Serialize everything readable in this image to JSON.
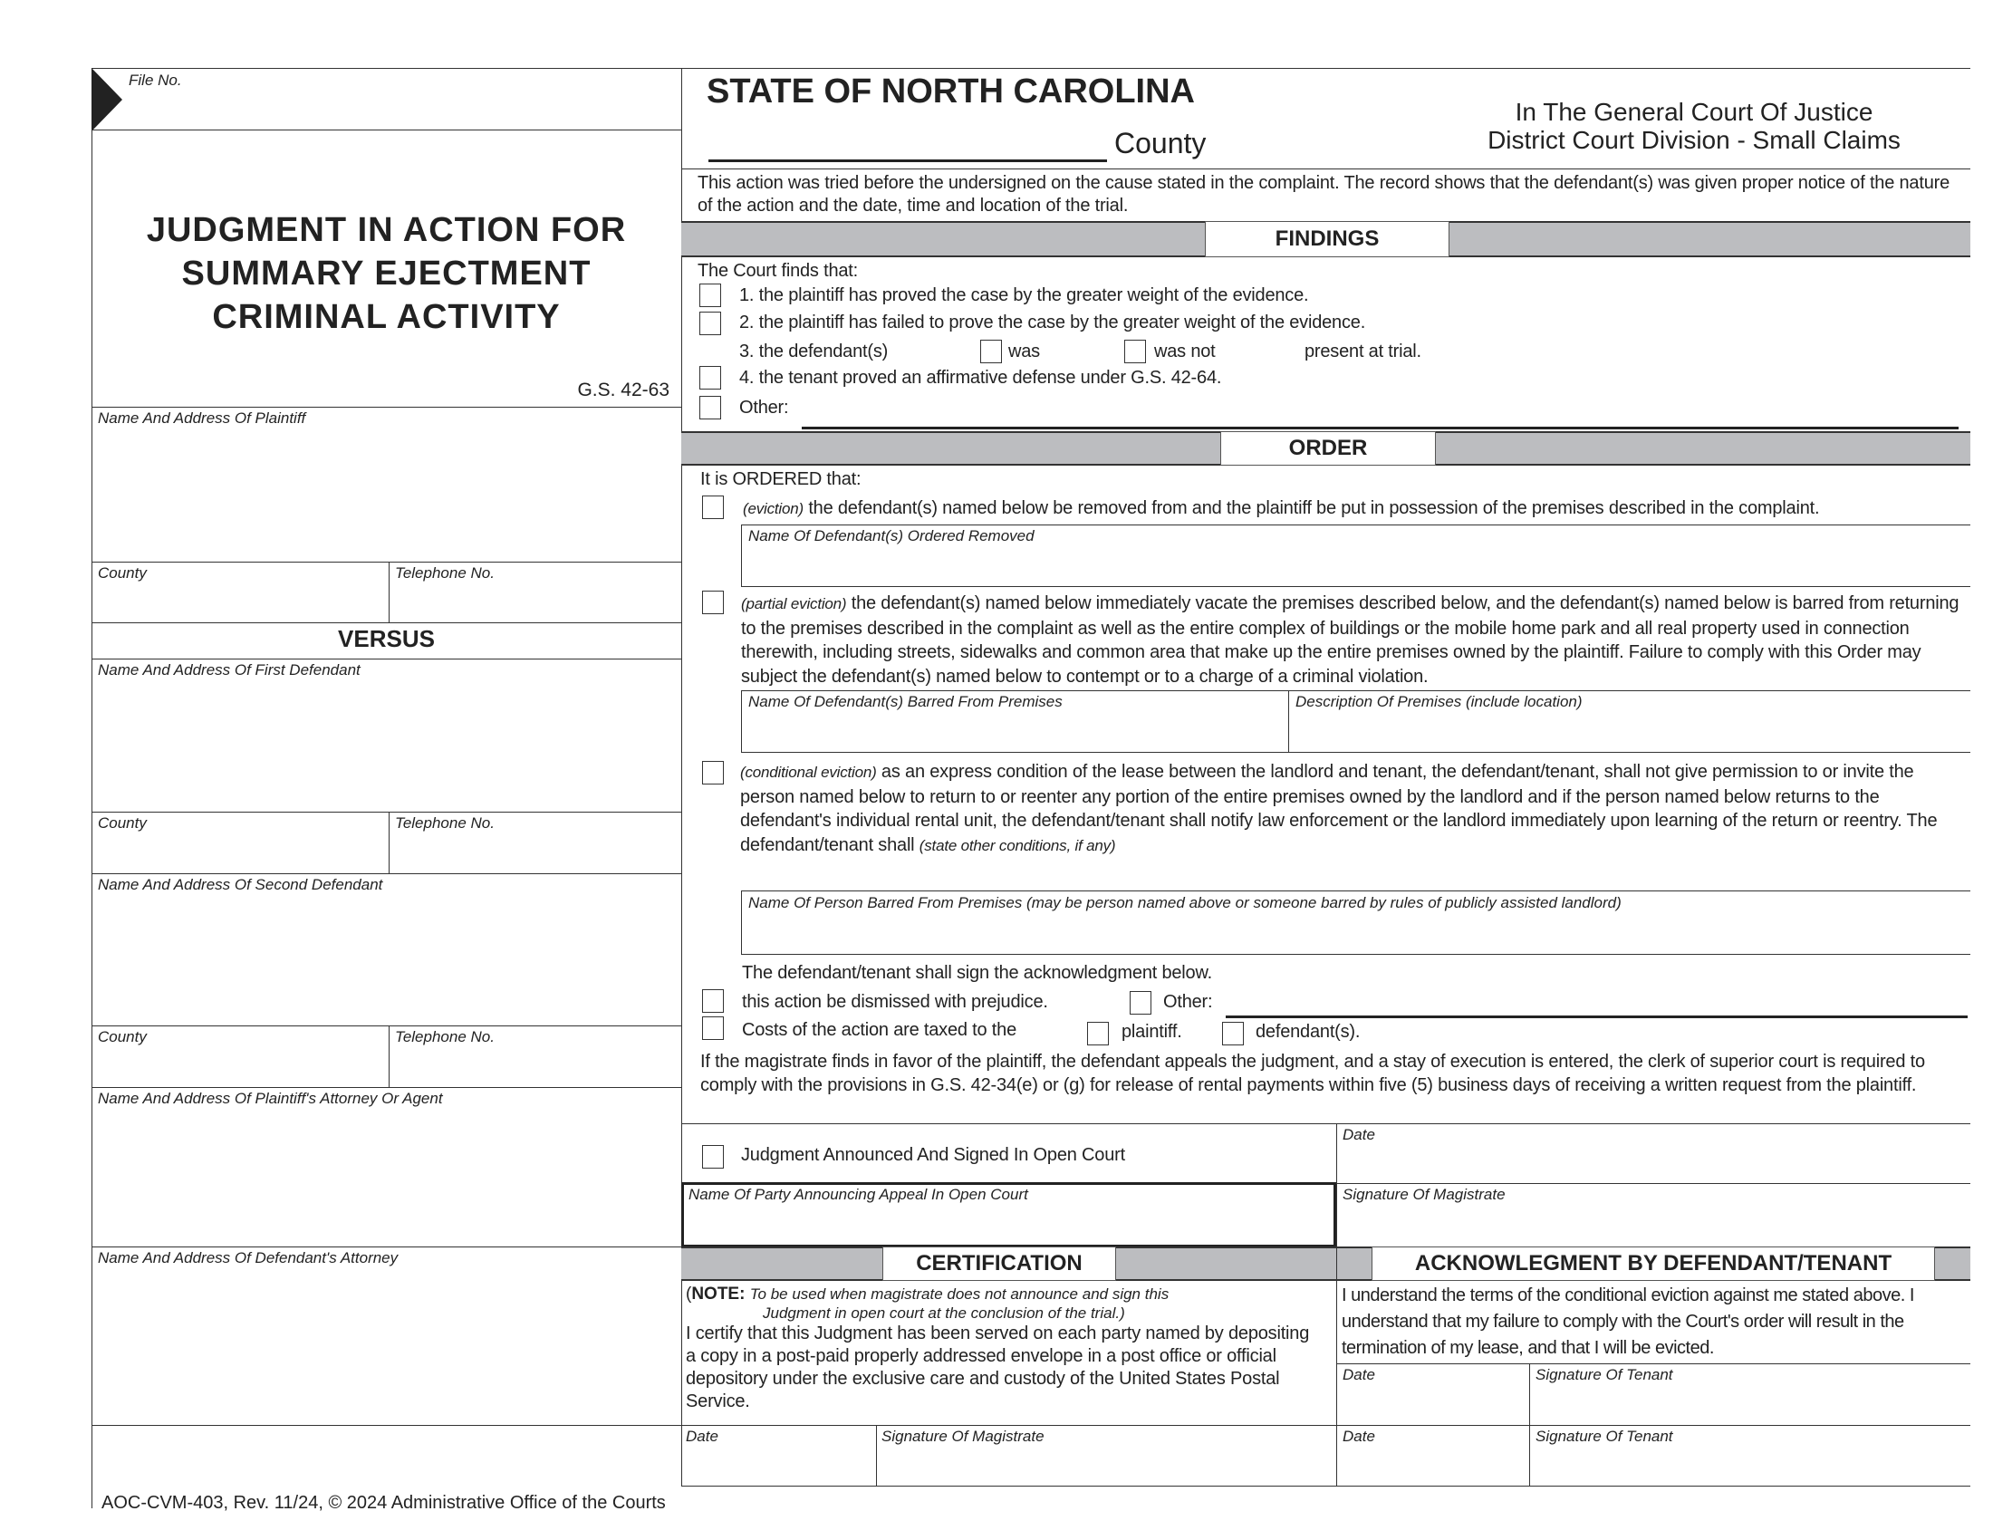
{
  "left": {
    "file_no_label": "File No.",
    "title_lines": [
      "JUDGMENT IN ACTION FOR",
      "SUMMARY EJECTMENT",
      "CRIMINAL ACTIVITY"
    ],
    "statute": "G.S. 42-63",
    "plaintiff_label": "Name And Address Of Plaintiff",
    "county_label": "County",
    "telephone_label": "Telephone No.",
    "versus": "VERSUS",
    "first_defendant_label": "Name And Address Of First Defendant",
    "second_defendant_label": "Name And Address Of Second Defendant",
    "plaintiff_attorney_label": "Name And Address Of Plaintiff's Attorney Or Agent",
    "defendant_attorney_label": "Name And Address Of Defendant's Attorney"
  },
  "header": {
    "state": "STATE OF NORTH CAROLINA",
    "county_label": "County",
    "court_line1": "In The General Court Of Justice",
    "court_line2": "District Court Division - Small Claims"
  },
  "intro": "This action was tried before the undersigned on the cause stated in the complaint. The record shows that the defendant(s) was given proper notice of the nature of the action and the date, time and location of the trial.",
  "findings": {
    "heading": "FINDINGS",
    "lead": "The Court finds that:",
    "item1": "1.  the plaintiff has proved the case by the greater weight of the evidence.",
    "item2": "2.  the plaintiff has failed to prove the case by the greater weight of the evidence.",
    "item3_prefix": "3. the defendant(s)",
    "item3_was": "was",
    "item3_was_not": "was not",
    "item3_suffix": "present at trial.",
    "item4": "4. the tenant proved an affirmative defense under G.S. 42-64.",
    "other": "Other:"
  },
  "order": {
    "heading": "ORDER",
    "lead": "It is ORDERED that:",
    "eviction_tag": "(eviction)",
    "eviction_text": " the defendant(s) named below be removed from and the plaintiff be put in possession of the premises described in the complaint.",
    "removed_label": "Name Of Defendant(s) Ordered Removed",
    "partial_tag": "(partial eviction)",
    "partial_text": " the defendant(s) named below immediately vacate the premises described below, and the defendant(s) named below is barred from returning to the premises described in the complaint as well as the entire complex of buildings or the mobile home park and all real property used in connection therewith, including streets, sidewalks and common area that make up the entire premises owned by the plaintiff. Failure to comply with this Order may subject the defendant(s) named below to contempt or to a charge of a criminal violation.",
    "barred_label": "Name Of Defendant(s) Barred From Premises",
    "premises_label": "Description Of Premises (include location)",
    "conditional_tag": "(conditional eviction)",
    "conditional_text": " as an express condition of the lease between the landlord and tenant, the defendant/tenant, shall not give permission to or invite the person named below to return to or reenter any portion of the entire premises owned by the landlord and if the person named below returns to the defendant's individual rental unit, the defendant/tenant shall notify law enforcement or the landlord immediately upon learning of the return or reentry. The defendant/tenant shall ",
    "conditional_note": "(state other conditions, if any)",
    "person_barred_label": "Name Of Person Barred From Premises (may be person named above or someone barred by rules of publicly assisted landlord)",
    "sign_ack": "The defendant/tenant shall sign the acknowledgment below.",
    "dismissed": "this action be dismissed with prejudice.",
    "other": "Other:",
    "costs": "Costs of the action are taxed to the",
    "costs_plaintiff": "plaintiff.",
    "costs_defendant": "defendant(s).",
    "appeal_note": "If the magistrate finds in favor of the plaintiff, the defendant appeals the judgment, and a stay of execution is entered, the clerk of superior court is required to comply with the provisions in G.S. 42-34(e) or (g) for release of rental payments within five (5) business days of receiving a written request from the plaintiff."
  },
  "signing": {
    "announced": "Judgment Announced And Signed In Open Court",
    "date_label": "Date",
    "appeal_party_label": "Name Of Party Announcing Appeal In Open Court",
    "magistrate_sig_label": "Signature Of Magistrate"
  },
  "certification": {
    "heading": "CERTIFICATION",
    "note_bold": "NOTE:",
    "note_text": "To be used when magistrate does not announce and sign this",
    "note_text2": "Judgment  in open court at the conclusion of the trial.)",
    "body": "I certify that this Judgment has been served on each party named by depositing a copy in a post-paid properly addressed envelope in a post office or official depository under the exclusive care and custody of the United States Postal Service.",
    "date_label": "Date",
    "sig_label": "Signature Of Magistrate"
  },
  "acknowledgment": {
    "heading": "ACKNOWLEGMENT BY DEFENDANT/TENANT",
    "body": "I understand the terms of the conditional eviction against me stated above. I understand that my failure to comply with the Court's order will result in the termination of my lease, and that I will be evicted.",
    "date_label": "Date",
    "sig_label": "Signature Of Tenant"
  },
  "footer": "AOC-CVM-403, Rev. 11/24, © 2024 Administrative Office of the Courts",
  "colors": {
    "bar": "#bcbdc0",
    "ink": "#222222"
  }
}
